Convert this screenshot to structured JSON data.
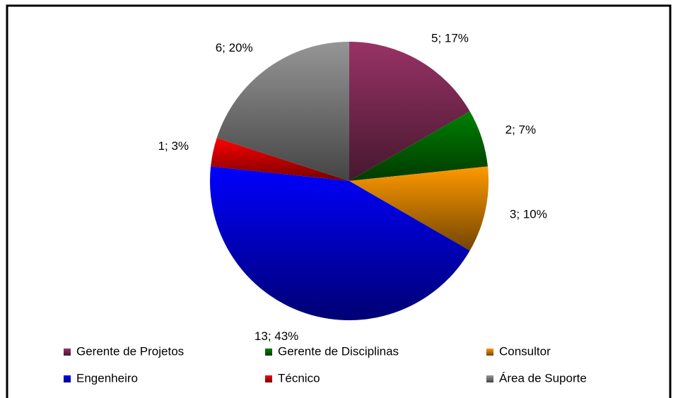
{
  "chart_data": {
    "type": "pie",
    "categories": [
      "Gerente de Projetos",
      "Gerente de Disciplinas",
      "Consultor",
      "Engenheiro",
      "Técnico",
      "Área de Suporte"
    ],
    "values": [
      5,
      2,
      3,
      13,
      1,
      6
    ],
    "value_labels": [
      "5; 17%",
      "2; 7%",
      "3; 10%",
      "13; 43%",
      "1; 3%",
      "6; 20%"
    ],
    "colors": [
      "#993366",
      "#008000",
      "#ff9900",
      "#0000ff",
      "#ff0000",
      "#969696"
    ],
    "legend": "bottom"
  }
}
